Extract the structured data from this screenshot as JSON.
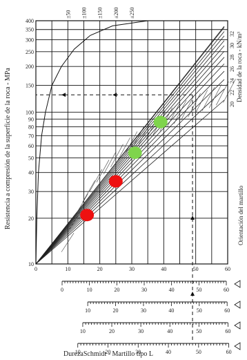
{
  "chart_data": {
    "type": "scatter",
    "ylabel": "Resistencia a compresión de la superficie de la roca - MPa",
    "xlabel": "DurezaSchmidt - Martillo tipo L",
    "density_label": "Densidad de la roca - kN/m³",
    "orientation_label": "Orientación del martillo",
    "y_scale": "log",
    "ylim": [
      10,
      400
    ],
    "xlim": [
      0,
      60
    ],
    "grid": true,
    "y_ticks": [
      "10",
      "20",
      "30",
      "40",
      "50",
      "60",
      "70",
      "80",
      "90",
      "100",
      "150",
      "200",
      "250",
      "300",
      "350",
      "400"
    ],
    "x_ticks": [
      "0",
      "10",
      "20",
      "30",
      "40",
      "50",
      "60"
    ],
    "top_labels": [
      "±50",
      "±100",
      "±150",
      "±200",
      "±250"
    ],
    "density_ticks": [
      "20",
      "22",
      "24",
      "26",
      "28",
      "30",
      "32"
    ],
    "hammer_scales": [
      {
        "ticks": [
          "0",
          "10",
          "20",
          "30",
          "40",
          "50",
          "60"
        ]
      },
      {
        "ticks": [
          "10",
          "20",
          "30",
          "40",
          "50",
          "60"
        ]
      },
      {
        "ticks": [
          "10",
          "20",
          "30",
          "40",
          "50",
          "60"
        ]
      },
      {
        "ticks": [
          "10",
          "20",
          "30",
          "40",
          "50",
          "60"
        ]
      }
    ],
    "points": [
      {
        "x": 16,
        "y": 21,
        "color": "#ee1111"
      },
      {
        "x": 25,
        "y": 35,
        "color": "#ee1111"
      },
      {
        "x": 31,
        "y": 54,
        "color": "#7fd44c"
      },
      {
        "x": 39,
        "y": 86,
        "color": "#7fd44c"
      }
    ],
    "example_reading": {
      "x": 49,
      "y": 130
    }
  }
}
